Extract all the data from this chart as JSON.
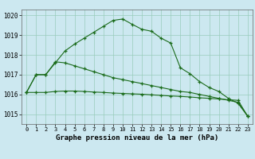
{
  "background_color": "#cce8f0",
  "grid_color": "#99ccbb",
  "line_color": "#1a6b1a",
  "xlabel": "Graphe pression niveau de la mer (hPa)",
  "xlim": [
    -0.5,
    23.5
  ],
  "ylim": [
    1014.5,
    1020.3
  ],
  "yticks": [
    1015,
    1016,
    1017,
    1018,
    1019,
    1020
  ],
  "xticks": [
    0,
    1,
    2,
    3,
    4,
    5,
    6,
    7,
    8,
    9,
    10,
    11,
    12,
    13,
    14,
    15,
    16,
    17,
    18,
    19,
    20,
    21,
    22,
    23
  ],
  "line1": [
    1016.1,
    1017.0,
    1017.0,
    1017.6,
    1018.2,
    1018.55,
    1018.85,
    1019.15,
    1019.45,
    1019.75,
    1019.82,
    1019.55,
    1019.3,
    1019.2,
    1018.85,
    1018.6,
    1017.35,
    1017.05,
    1016.65,
    1016.35,
    1016.15,
    1015.8,
    1015.55,
    1014.9
  ],
  "line2": [
    1016.1,
    1017.0,
    1017.0,
    1017.65,
    1017.6,
    1017.45,
    1017.3,
    1017.15,
    1017.0,
    1016.85,
    1016.75,
    1016.65,
    1016.55,
    1016.45,
    1016.35,
    1016.25,
    1016.15,
    1016.1,
    1016.0,
    1015.9,
    1015.8,
    1015.7,
    1015.6,
    1014.9
  ],
  "line3": [
    1016.1,
    1016.1,
    1016.1,
    1016.15,
    1016.17,
    1016.17,
    1016.15,
    1016.12,
    1016.1,
    1016.07,
    1016.05,
    1016.03,
    1016.01,
    1015.98,
    1015.95,
    1015.92,
    1015.9,
    1015.87,
    1015.83,
    1015.8,
    1015.77,
    1015.73,
    1015.7,
    1014.9
  ],
  "xlabel_fontsize": 6.5,
  "xlabel_fontweight": "bold",
  "xtick_fontsize": 5.0,
  "ytick_fontsize": 5.5,
  "figwidth": 3.2,
  "figheight": 2.0,
  "dpi": 100
}
